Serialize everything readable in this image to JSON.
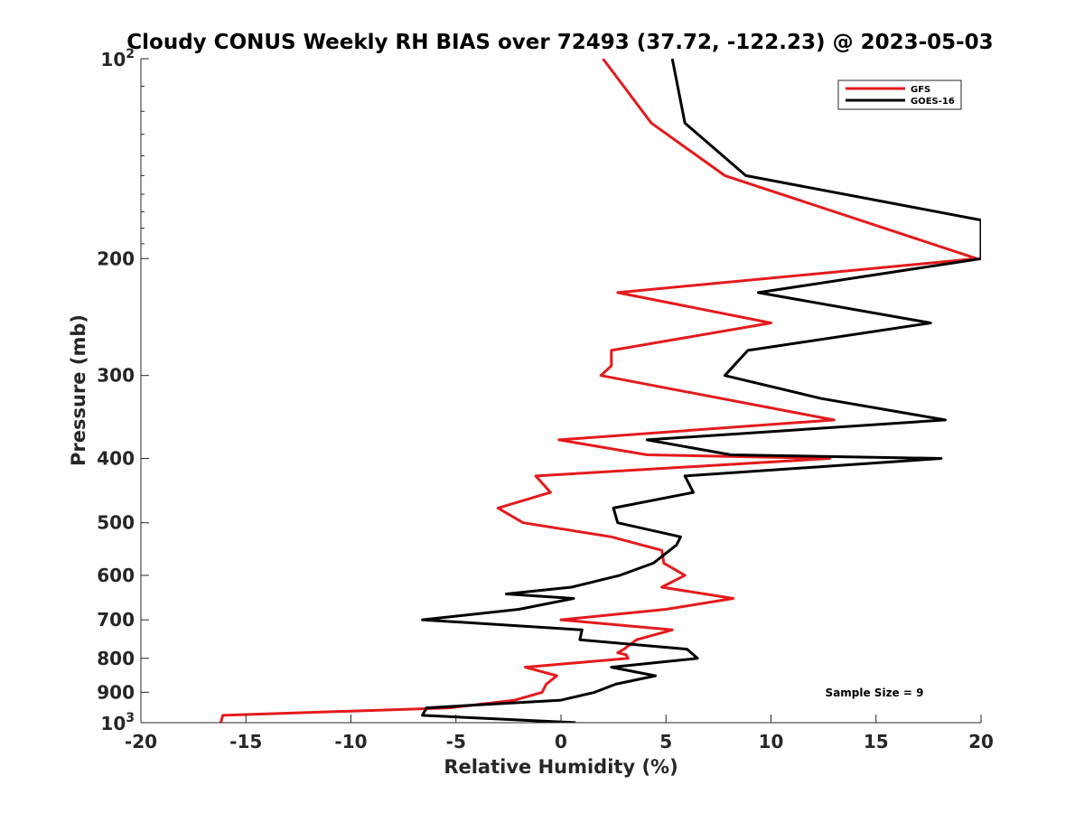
{
  "chart_data": {
    "type": "line",
    "title": "Cloudy CONUS Weekly RH BIAS over 72493 (37.72, -122.23) @ 2023-05-03",
    "xlabel": "Relative Humidity (%)",
    "ylabel": "Pressure (mb)",
    "xlim": [
      -20,
      20
    ],
    "ylim": [
      100,
      1000
    ],
    "y_scale": "log",
    "y_reversed": true,
    "grid": false,
    "legend_position": "top-right",
    "x_ticks": [
      "-20",
      "-15",
      "-10",
      "-5",
      "0",
      "5",
      "10",
      "15",
      "20"
    ],
    "y_ticks": [
      {
        "value": 100,
        "base": "10",
        "exp": "2"
      },
      {
        "value": 200,
        "label": "200"
      },
      {
        "value": 300,
        "label": "300"
      },
      {
        "value": 400,
        "label": "400"
      },
      {
        "value": 500,
        "label": "500"
      },
      {
        "value": 600,
        "label": "600"
      },
      {
        "value": 700,
        "label": "700"
      },
      {
        "value": 800,
        "label": "800"
      },
      {
        "value": 900,
        "label": "900"
      },
      {
        "value": 1000,
        "base": "10",
        "exp": "3"
      }
    ],
    "series": [
      {
        "name": "GFS",
        "color": "#e41a1c",
        "points": [
          [
            2.0,
            100
          ],
          [
            4.3,
            125
          ],
          [
            7.8,
            150
          ],
          [
            19.8,
            200
          ],
          [
            2.7,
            225
          ],
          [
            10.0,
            250
          ],
          [
            2.4,
            275
          ],
          [
            2.4,
            290
          ],
          [
            1.9,
            300
          ],
          [
            13.0,
            350
          ],
          [
            -0.1,
            375
          ],
          [
            4.1,
            395
          ],
          [
            12.8,
            400
          ],
          [
            -1.2,
            425
          ],
          [
            -0.5,
            450
          ],
          [
            -3.0,
            475
          ],
          [
            -1.8,
            500
          ],
          [
            2.4,
            525
          ],
          [
            4.8,
            550
          ],
          [
            4.9,
            575
          ],
          [
            5.9,
            600
          ],
          [
            4.8,
            625
          ],
          [
            8.2,
            650
          ],
          [
            5.0,
            675
          ],
          [
            0.0,
            700
          ],
          [
            5.3,
            725
          ],
          [
            3.6,
            750
          ],
          [
            3.0,
            775
          ],
          [
            2.7,
            785
          ],
          [
            3.1,
            790
          ],
          [
            3.2,
            800
          ],
          [
            -1.7,
            825
          ],
          [
            -0.2,
            850
          ],
          [
            -0.7,
            875
          ],
          [
            -0.9,
            900
          ],
          [
            -2.2,
            925
          ],
          [
            -5.3,
            950
          ],
          [
            -16.1,
            975
          ],
          [
            -16.2,
            1000
          ]
        ]
      },
      {
        "name": "GOES-16",
        "color": "#000000",
        "points": [
          [
            5.3,
            100
          ],
          [
            5.9,
            125
          ],
          [
            8.8,
            150
          ],
          [
            20.0,
            175
          ],
          [
            20.0,
            200
          ],
          [
            9.4,
            225
          ],
          [
            17.6,
            250
          ],
          [
            8.9,
            275
          ],
          [
            7.8,
            300
          ],
          [
            12.4,
            325
          ],
          [
            18.3,
            350
          ],
          [
            4.1,
            375
          ],
          [
            8.1,
            395
          ],
          [
            18.1,
            400
          ],
          [
            5.9,
            425
          ],
          [
            6.3,
            450
          ],
          [
            2.5,
            475
          ],
          [
            2.7,
            500
          ],
          [
            5.7,
            525
          ],
          [
            5.5,
            540
          ],
          [
            4.4,
            575
          ],
          [
            2.8,
            600
          ],
          [
            0.5,
            625
          ],
          [
            -2.6,
            640
          ],
          [
            0.6,
            650
          ],
          [
            -2.0,
            675
          ],
          [
            -6.6,
            700
          ],
          [
            1.0,
            725
          ],
          [
            0.9,
            750
          ],
          [
            6.0,
            775
          ],
          [
            6.5,
            800
          ],
          [
            2.4,
            825
          ],
          [
            4.5,
            850
          ],
          [
            2.6,
            875
          ],
          [
            1.6,
            900
          ],
          [
            0.0,
            925
          ],
          [
            -6.4,
            950
          ],
          [
            -6.6,
            975
          ],
          [
            0.7,
            1000
          ]
        ]
      }
    ],
    "annotations": [
      "Sample Size = 9"
    ]
  }
}
